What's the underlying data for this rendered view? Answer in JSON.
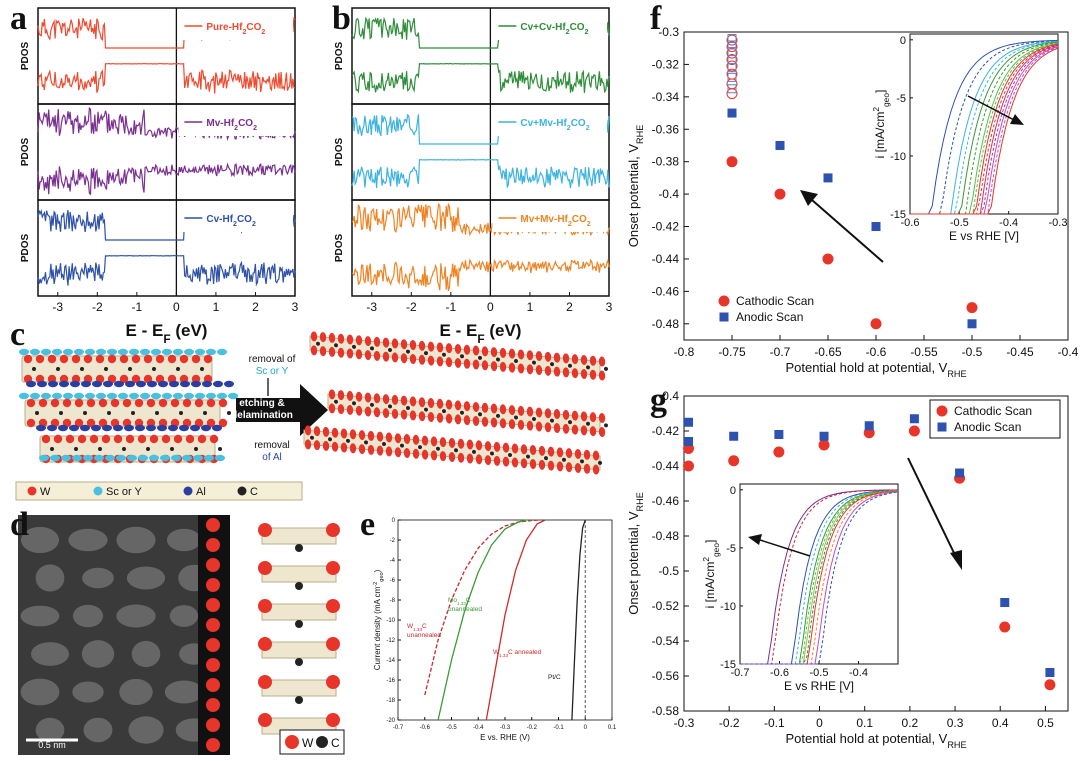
{
  "panel_letters": {
    "a": "a",
    "b": "b",
    "c": "c",
    "d": "d",
    "e": "e",
    "f": "f",
    "g": "g"
  },
  "colors": {
    "pure": "#ef4b30",
    "mv": "#7b2f92",
    "cv": "#2e52a8",
    "cvcv": "#2f8e3a",
    "cvmv": "#3db3e0",
    "mvmv": "#f08323",
    "cathodic": "#e8352a",
    "anodic": "#2d52b0"
  },
  "dos": {
    "xlabel": "E - E",
    "xlabel_sub": "F",
    "xlabel_unit": " (eV)",
    "ylabel": "PDOS",
    "xticks": [
      "-3",
      "-2",
      "-1",
      "0",
      "1",
      "2",
      "3"
    ],
    "labels": {
      "pure": {
        "pre": "Pure-Hf",
        "sub1": "2",
        "mid": "CO",
        "sub2": "2"
      },
      "mv": {
        "pre": "Mv-Hf",
        "sub1": "2",
        "mid": "CO",
        "sub2": "2"
      },
      "cv": {
        "pre": "Cv-Hf",
        "sub1": "2",
        "mid": "CO",
        "sub2": "2"
      },
      "cvcv": {
        "pre": "Cv+Cv-Hf",
        "sub1": "2",
        "mid": "CO",
        "sub2": "2"
      },
      "cvmv": {
        "pre": "Cv+Mv-Hf",
        "sub1": "2",
        "mid": "CO",
        "sub2": "2"
      },
      "mvmv": {
        "pre": "Mv+Mv-Hf",
        "sub1": "2",
        "mid": "CO",
        "sub2": "2"
      }
    }
  },
  "schematic_c": {
    "removal_top": "removal of",
    "removal_top_elem": "Sc or Y",
    "etch_line1": "etching &",
    "etch_line2": "delamination",
    "removal_bottom": "removal",
    "removal_bottom_elem": "of Al",
    "legend": [
      {
        "symbol": "W",
        "label": "W",
        "color": "#e8352a"
      },
      {
        "symbol": "ScY",
        "label": "Sc or Y",
        "color": "#48c0e0"
      },
      {
        "symbol": "Al",
        "label": "Al",
        "color": "#2a3fa0"
      },
      {
        "symbol": "C",
        "label": "C",
        "color": "#222222"
      }
    ]
  },
  "micrograph_d": {
    "scale_bar": "0.5 nm",
    "legend_w": "W",
    "legend_c": "C"
  },
  "chart_data": [
    {
      "id": "e",
      "type": "line",
      "xlabel": "E vs. RHE (V)",
      "ylabel": "Current density (mA cm",
      "ylabel_sup": "-2",
      "ylabel_sub": "geo",
      "ylabel_end": ")",
      "xlim": [
        -0.7,
        0.1
      ],
      "ylim": [
        -20,
        0
      ],
      "xticks": [
        "-0.7",
        "-0.6",
        "-0.5",
        "-0.4",
        "-0.3",
        "-0.2",
        "-0.1",
        "0",
        "0.1"
      ],
      "yticks": [
        "0",
        "-2",
        "-4",
        "-6",
        "-8",
        "-10",
        "-12",
        "-14",
        "-16",
        "-18",
        "-20"
      ],
      "series": [
        {
          "name": "W1.33C unannealed",
          "label_main": "W",
          "label_sub": "1.33",
          "label_rest": "C",
          "label_line2": "unannealed",
          "color": "#c8282d",
          "dashed": true,
          "x": [
            -0.6,
            -0.55,
            -0.5,
            -0.45,
            -0.4,
            -0.35,
            -0.3,
            -0.25,
            -0.2,
            -0.17
          ],
          "y": [
            -17.5,
            -12,
            -8,
            -5,
            -2.8,
            -1.4,
            -0.6,
            -0.2,
            -0.05,
            0
          ]
        },
        {
          "name": "Mo1.33C unannealed",
          "label_main": "Mo",
          "label_sub": "1.33",
          "label_rest": "C",
          "label_line2": "unannealed",
          "color": "#3d9a35",
          "dashed": false,
          "x": [
            -0.55,
            -0.5,
            -0.45,
            -0.4,
            -0.35,
            -0.3,
            -0.25,
            -0.22,
            -0.2
          ],
          "y": [
            -20,
            -14,
            -9,
            -5.2,
            -2.5,
            -0.9,
            -0.2,
            0,
            0
          ]
        },
        {
          "name": "W1.33C annealed",
          "label_main": "W",
          "label_sub": "1.33",
          "label_rest": "C annealed",
          "color": "#d02a2a",
          "dashed": false,
          "x": [
            -0.37,
            -0.33,
            -0.3,
            -0.26,
            -0.22,
            -0.18,
            -0.15
          ],
          "y": [
            -20,
            -14,
            -9.5,
            -5,
            -2,
            -0.4,
            0
          ]
        },
        {
          "name": "Pt/C",
          "label_main": "Pt/C",
          "color": "#222222",
          "dashed": false,
          "x": [
            -0.05,
            -0.04,
            -0.03,
            -0.02,
            -0.01,
            0
          ],
          "y": [
            -20,
            -14,
            -8,
            -3.5,
            -0.8,
            0
          ]
        }
      ]
    },
    {
      "id": "f",
      "type": "scatter",
      "xlabel": "Potential hold at potential, V",
      "xlabel_sub": "RHE",
      "ylabel": "Onset potential, V",
      "ylabel_sub": "RHE",
      "xlim": [
        -0.8,
        -0.4
      ],
      "ylim": [
        -0.49,
        -0.3
      ],
      "xticks": [
        "-0.8",
        "-0.75",
        "-0.7",
        "-0.65",
        "-0.6",
        "-0.55",
        "-0.5",
        "-0.45",
        "-0.4"
      ],
      "yticks": [
        "-0.3",
        "-0.32",
        "-0.34",
        "-0.36",
        "-0.38",
        "-0.4",
        "-0.42",
        "-0.44",
        "-0.46",
        "-0.48"
      ],
      "legend": [
        "Cathodic Scan",
        "Anodic Scan"
      ],
      "series": [
        {
          "name": "Cathodic Scan",
          "x": [
            -0.75,
            -0.7,
            -0.65,
            -0.6,
            -0.5
          ],
          "y": [
            -0.38,
            -0.4,
            -0.44,
            -0.48,
            -0.47
          ]
        },
        {
          "name": "Anodic Scan",
          "x": [
            -0.75,
            -0.7,
            -0.65,
            -0.6,
            -0.5
          ],
          "y": [
            -0.35,
            -0.37,
            -0.39,
            -0.42,
            -0.48
          ]
        },
        {
          "name": "Cathodic (open)",
          "x": [
            -0.75,
            -0.75,
            -0.75,
            -0.75,
            -0.75,
            -0.75,
            -0.75,
            -0.75
          ],
          "y": [
            -0.338,
            -0.332,
            -0.326,
            -0.321,
            -0.317,
            -0.313,
            -0.309,
            -0.305
          ]
        },
        {
          "name": "Anodic (open)",
          "x": [
            -0.75,
            -0.75,
            -0.75,
            -0.75,
            -0.75,
            -0.75,
            -0.75
          ],
          "y": [
            -0.335,
            -0.328,
            -0.322,
            -0.317,
            -0.312,
            -0.308,
            -0.304
          ]
        }
      ],
      "inset": {
        "xlabel": "E vs RHE [V]",
        "ylabel": "i [mA/cm",
        "ylabel_sup": "2",
        "ylabel_sub": "geo",
        "ylabel_end": "]",
        "xlim": [
          -0.6,
          -0.3
        ],
        "ylim": [
          -15,
          0.5
        ],
        "xticks": [
          "-0.6",
          "-0.5",
          "-0.4",
          "-0.3"
        ],
        "yticks": [
          "0",
          "-5",
          "-10",
          "-15"
        ],
        "curve_onsets": [
          -0.56,
          -0.54,
          -0.52,
          -0.51,
          -0.5,
          -0.49,
          -0.48,
          -0.475,
          -0.47,
          -0.465,
          -0.46,
          -0.455,
          -0.45,
          -0.445,
          -0.44
        ],
        "curve_colors": [
          "#2d52b0",
          "#2d52b0",
          "#3db3e0",
          "#3db3e0",
          "#3d9a35",
          "#3d9a35",
          "#5cbf4a",
          "#5cbf4a",
          "#e8352a",
          "#e8352a",
          "#d0306a",
          "#d0306a",
          "#c04ad0",
          "#c04ad0",
          "#e8352a"
        ]
      }
    },
    {
      "id": "g",
      "type": "scatter",
      "xlabel": "Potential hold at potential, V",
      "xlabel_sub": "RHE",
      "ylabel": "Onset potential, V",
      "ylabel_sub": "RHE",
      "xlim": [
        -0.3,
        0.55
      ],
      "ylim": [
        -0.58,
        -0.4
      ],
      "xticks": [
        "-0.3",
        "-0.2",
        "-0.1",
        "0",
        "0.1",
        "0.2",
        "0.3",
        "0.4",
        "0.5"
      ],
      "yticks": [
        "-0.4",
        "-0.42",
        "-0.44",
        "-0.46",
        "-0.48",
        "-0.5",
        "-0.52",
        "-0.54",
        "-0.56",
        "-0.58"
      ],
      "legend": [
        "Cathodic Scan",
        "Anodic Scan"
      ],
      "series": [
        {
          "name": "Cathodic Scan",
          "x": [
            -0.29,
            -0.29,
            -0.19,
            -0.09,
            0.01,
            0.11,
            0.21,
            0.31,
            0.41,
            0.51
          ],
          "y": [
            -0.44,
            -0.43,
            -0.437,
            -0.432,
            -0.428,
            -0.421,
            -0.42,
            -0.447,
            -0.532,
            -0.565
          ]
        },
        {
          "name": "Anodic Scan",
          "x": [
            -0.29,
            -0.29,
            -0.19,
            -0.09,
            0.01,
            0.11,
            0.21,
            0.31,
            0.41,
            0.51
          ],
          "y": [
            -0.415,
            -0.426,
            -0.423,
            -0.422,
            -0.423,
            -0.417,
            -0.413,
            -0.444,
            -0.518,
            -0.558
          ]
        }
      ],
      "inset": {
        "xlabel": "E vs RHE [V]",
        "ylabel": "i [mA/cm",
        "ylabel_sup": "2",
        "ylabel_sub": "geo",
        "ylabel_end": "]",
        "xlim": [
          -0.7,
          -0.3
        ],
        "ylim": [
          -15,
          0.5
        ],
        "xticks": [
          "-0.7",
          "-0.6",
          "-0.5",
          "-0.4"
        ],
        "yticks": [
          "0",
          "-5",
          "-10",
          "-15"
        ],
        "curve_onsets": [
          -0.63,
          -0.62,
          -0.57,
          -0.56,
          -0.55,
          -0.545,
          -0.54,
          -0.535,
          -0.53,
          -0.52,
          -0.51,
          -0.5
        ],
        "curve_colors": [
          "#7b2f92",
          "#c8282d",
          "#2d52b0",
          "#3db3e0",
          "#3d9a35",
          "#5cbf4a",
          "#8bc34a",
          "#2f8e3a",
          "#e8352a",
          "#f08323",
          "#c04ad0",
          "#2d52b0"
        ]
      }
    }
  ]
}
